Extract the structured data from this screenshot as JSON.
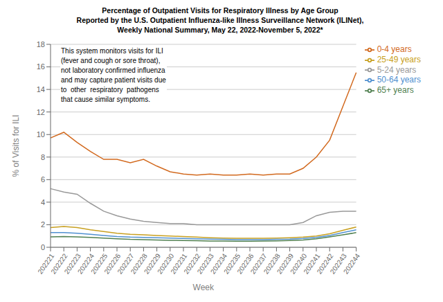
{
  "chart_data": {
    "type": "line",
    "title": "Percentage of Outpatient Visits for Respiratory Illness by Age Group\nReported by the U.S. Outpatient Influenza-like Illness Surveillance Network (ILINet),\nWeekly National Summary, May 22, 2022-November 5, 2022*",
    "xlabel": "Week",
    "ylabel": "% of Visits for ILI",
    "categories": [
      "202221",
      "202222",
      "202223",
      "202224",
      "202225",
      "202226",
      "202227",
      "202228",
      "202229",
      "202230",
      "202231",
      "202232",
      "202233",
      "202234",
      "202235",
      "202236",
      "202237",
      "202238",
      "202239",
      "202240",
      "202241",
      "202242",
      "202243",
      "202244"
    ],
    "series": [
      {
        "name": "0-4 years",
        "color": "#D2691E",
        "values": [
          9.7,
          10.2,
          9.3,
          8.5,
          7.8,
          7.8,
          7.5,
          7.8,
          7.2,
          6.7,
          6.5,
          6.4,
          6.5,
          6.4,
          6.4,
          6.5,
          6.4,
          6.5,
          6.5,
          7.0,
          8.0,
          9.5,
          12.5,
          15.5
        ]
      },
      {
        "name": "5-24 years",
        "color": "#999999",
        "values": [
          5.2,
          4.9,
          4.7,
          3.9,
          3.2,
          2.8,
          2.5,
          2.3,
          2.2,
          2.1,
          2.1,
          2.0,
          2.0,
          2.0,
          2.0,
          2.0,
          2.0,
          2.0,
          2.0,
          2.2,
          2.8,
          3.1,
          3.2,
          3.2
        ]
      },
      {
        "name": "25-49 years",
        "color": "#C8A020",
        "values": [
          1.75,
          1.85,
          1.75,
          1.55,
          1.4,
          1.25,
          1.15,
          1.1,
          1.05,
          1.0,
          0.95,
          0.9,
          0.85,
          0.82,
          0.8,
          0.8,
          0.8,
          0.82,
          0.85,
          0.9,
          1.0,
          1.2,
          1.5,
          1.8
        ]
      },
      {
        "name": "50-64 years",
        "color": "#5090D0",
        "values": [
          1.3,
          1.3,
          1.25,
          1.15,
          1.05,
          0.95,
          0.9,
          0.88,
          0.85,
          0.82,
          0.78,
          0.75,
          0.72,
          0.7,
          0.68,
          0.68,
          0.68,
          0.7,
          0.72,
          0.78,
          0.88,
          1.05,
          1.3,
          1.55
        ]
      },
      {
        "name": "65+ years",
        "color": "#508050",
        "values": [
          0.92,
          0.95,
          0.92,
          0.88,
          0.82,
          0.75,
          0.7,
          0.68,
          0.65,
          0.62,
          0.6,
          0.58,
          0.56,
          0.55,
          0.54,
          0.54,
          0.55,
          0.57,
          0.6,
          0.65,
          0.75,
          0.92,
          1.1,
          1.3
        ]
      }
    ],
    "ylim": [
      0,
      18
    ],
    "yticks": [
      0,
      2,
      4,
      6,
      8,
      10,
      12,
      14,
      16,
      18
    ],
    "grid": "y",
    "legend": "upper right",
    "annotation": "This system monitors visits for ILI\n(fever and cough or sore throat),\nnot laboratory confirmed influenza\nand may capture patient visits due\nto  other  respiratory  pathogens\nthat cause similar symptoms."
  }
}
